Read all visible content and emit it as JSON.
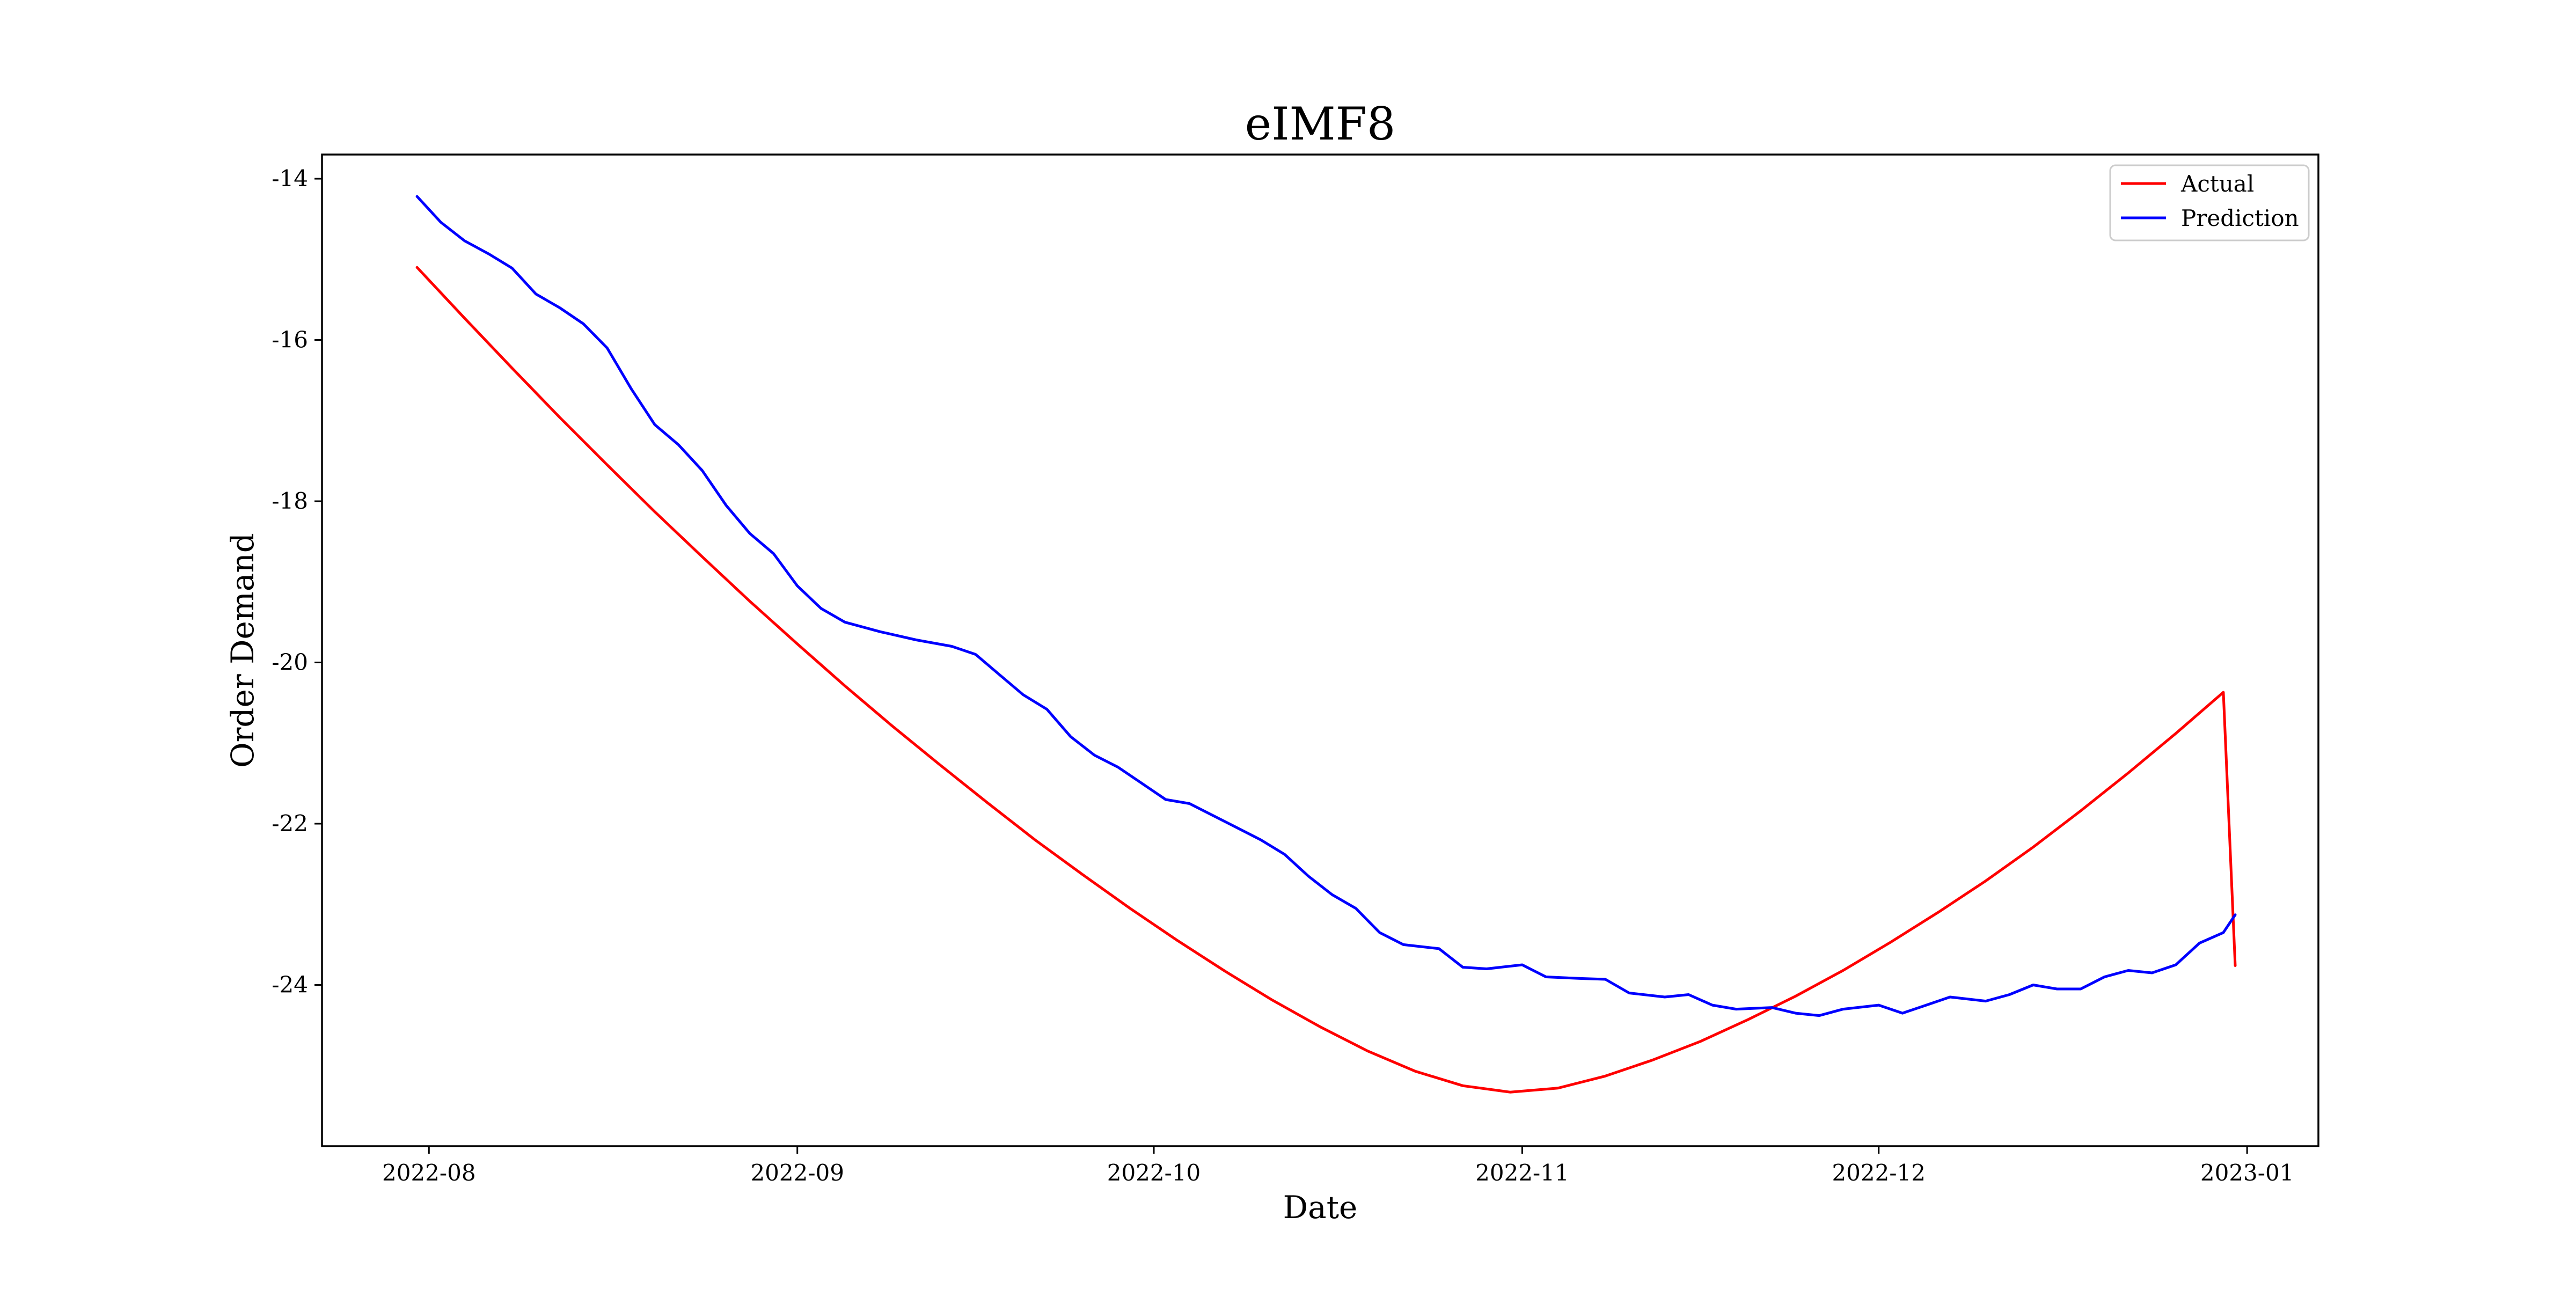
{
  "chart_data": {
    "type": "line",
    "title": "eIMF8",
    "xlabel": "Date",
    "ylabel": "Order Demand",
    "x_axis": {
      "type": "date",
      "range": [
        "2022-07-23",
        "2023-01-07"
      ],
      "ticks": [
        "2022-08-01",
        "2022-09-01",
        "2022-10-01",
        "2022-11-01",
        "2022-12-01",
        "2023-01-01"
      ],
      "tick_labels": [
        "2022-08",
        "2022-09",
        "2022-10",
        "2022-11",
        "2022-12",
        "2023-01"
      ]
    },
    "y_axis": {
      "range": [
        -26.0,
        -13.7
      ],
      "ticks": [
        -14,
        -16,
        -18,
        -20,
        -22,
        -24
      ],
      "tick_labels": [
        "-14",
        "-16",
        "-18",
        "-20",
        "-22",
        "-24"
      ]
    },
    "grid": false,
    "legend": {
      "placement": "top-right",
      "entries": [
        {
          "label": "Actual",
          "color": "#ff0000"
        },
        {
          "label": "Prediction",
          "color": "#0000ff"
        }
      ]
    },
    "series": [
      {
        "name": "Actual",
        "color": "#ff0000",
        "points": [
          [
            "2022-07-31",
            -15.1
          ],
          [
            "2022-08-04",
            -15.73
          ],
          [
            "2022-08-08",
            -16.35
          ],
          [
            "2022-08-12",
            -16.96
          ],
          [
            "2022-08-16",
            -17.55
          ],
          [
            "2022-08-20",
            -18.13
          ],
          [
            "2022-08-24",
            -18.69
          ],
          [
            "2022-08-28",
            -19.24
          ],
          [
            "2022-09-01",
            -19.77
          ],
          [
            "2022-09-05",
            -20.29
          ],
          [
            "2022-09-09",
            -20.79
          ],
          [
            "2022-09-13",
            -21.27
          ],
          [
            "2022-09-17",
            -21.74
          ],
          [
            "2022-09-21",
            -22.2
          ],
          [
            "2022-09-25",
            -22.63
          ],
          [
            "2022-09-29",
            -23.05
          ],
          [
            "2022-10-03",
            -23.45
          ],
          [
            "2022-10-07",
            -23.83
          ],
          [
            "2022-10-11",
            -24.19
          ],
          [
            "2022-10-15",
            -24.52
          ],
          [
            "2022-10-19",
            -24.82
          ],
          [
            "2022-10-23",
            -25.07
          ],
          [
            "2022-10-27",
            -25.25
          ],
          [
            "2022-10-31",
            -25.33
          ],
          [
            "2022-11-04",
            -25.28
          ],
          [
            "2022-11-08",
            -25.13
          ],
          [
            "2022-11-12",
            -24.93
          ],
          [
            "2022-11-16",
            -24.7
          ],
          [
            "2022-11-20",
            -24.43
          ],
          [
            "2022-11-24",
            -24.14
          ],
          [
            "2022-11-28",
            -23.82
          ],
          [
            "2022-12-02",
            -23.47
          ],
          [
            "2022-12-06",
            -23.1
          ],
          [
            "2022-12-10",
            -22.71
          ],
          [
            "2022-12-14",
            -22.29
          ],
          [
            "2022-12-18",
            -21.84
          ],
          [
            "2022-12-22",
            -21.37
          ],
          [
            "2022-12-26",
            -20.88
          ],
          [
            "2022-12-30",
            -20.37
          ],
          [
            "2022-12-31",
            -23.76
          ]
        ]
      },
      {
        "name": "Prediction",
        "color": "#0000ff",
        "points": [
          [
            "2022-07-31",
            -14.22
          ],
          [
            "2022-08-02",
            -14.54
          ],
          [
            "2022-08-04",
            -14.77
          ],
          [
            "2022-08-06",
            -14.93
          ],
          [
            "2022-08-08",
            -15.11
          ],
          [
            "2022-08-10",
            -15.43
          ],
          [
            "2022-08-12",
            -15.6
          ],
          [
            "2022-08-14",
            -15.8
          ],
          [
            "2022-08-16",
            -16.1
          ],
          [
            "2022-08-18",
            -16.6
          ],
          [
            "2022-08-20",
            -17.05
          ],
          [
            "2022-08-22",
            -17.3
          ],
          [
            "2022-08-24",
            -17.62
          ],
          [
            "2022-08-26",
            -18.05
          ],
          [
            "2022-08-28",
            -18.4
          ],
          [
            "2022-08-30",
            -18.65
          ],
          [
            "2022-09-01",
            -19.05
          ],
          [
            "2022-09-03",
            -19.33
          ],
          [
            "2022-09-05",
            -19.5
          ],
          [
            "2022-09-08",
            -19.62
          ],
          [
            "2022-09-11",
            -19.72
          ],
          [
            "2022-09-14",
            -19.8
          ],
          [
            "2022-09-16",
            -19.9
          ],
          [
            "2022-09-18",
            -20.15
          ],
          [
            "2022-09-20",
            -20.4
          ],
          [
            "2022-09-22",
            -20.58
          ],
          [
            "2022-09-24",
            -20.92
          ],
          [
            "2022-09-26",
            -21.15
          ],
          [
            "2022-09-28",
            -21.3
          ],
          [
            "2022-09-30",
            -21.5
          ],
          [
            "2022-10-02",
            -21.7
          ],
          [
            "2022-10-04",
            -21.75
          ],
          [
            "2022-10-06",
            -21.9
          ],
          [
            "2022-10-08",
            -22.05
          ],
          [
            "2022-10-10",
            -22.2
          ],
          [
            "2022-10-12",
            -22.38
          ],
          [
            "2022-10-14",
            -22.65
          ],
          [
            "2022-10-16",
            -22.88
          ],
          [
            "2022-10-18",
            -23.05
          ],
          [
            "2022-10-20",
            -23.35
          ],
          [
            "2022-10-22",
            -23.5
          ],
          [
            "2022-10-25",
            -23.55
          ],
          [
            "2022-10-27",
            -23.78
          ],
          [
            "2022-10-29",
            -23.8
          ],
          [
            "2022-11-01",
            -23.75
          ],
          [
            "2022-11-03",
            -23.9
          ],
          [
            "2022-11-06",
            -23.92
          ],
          [
            "2022-11-08",
            -23.93
          ],
          [
            "2022-11-10",
            -24.1
          ],
          [
            "2022-11-13",
            -24.15
          ],
          [
            "2022-11-15",
            -24.12
          ],
          [
            "2022-11-17",
            -24.25
          ],
          [
            "2022-11-19",
            -24.3
          ],
          [
            "2022-11-22",
            -24.28
          ],
          [
            "2022-11-24",
            -24.35
          ],
          [
            "2022-11-26",
            -24.38
          ],
          [
            "2022-11-28",
            -24.3
          ],
          [
            "2022-12-01",
            -24.25
          ],
          [
            "2022-12-03",
            -24.35
          ],
          [
            "2022-12-05",
            -24.25
          ],
          [
            "2022-12-07",
            -24.15
          ],
          [
            "2022-12-10",
            -24.2
          ],
          [
            "2022-12-12",
            -24.12
          ],
          [
            "2022-12-14",
            -24.0
          ],
          [
            "2022-12-16",
            -24.05
          ],
          [
            "2022-12-18",
            -24.05
          ],
          [
            "2022-12-20",
            -23.9
          ],
          [
            "2022-12-22",
            -23.82
          ],
          [
            "2022-12-24",
            -23.85
          ],
          [
            "2022-12-26",
            -23.75
          ],
          [
            "2022-12-28",
            -23.48
          ],
          [
            "2022-12-30",
            -23.35
          ],
          [
            "2022-12-31",
            -23.13
          ]
        ]
      }
    ]
  }
}
